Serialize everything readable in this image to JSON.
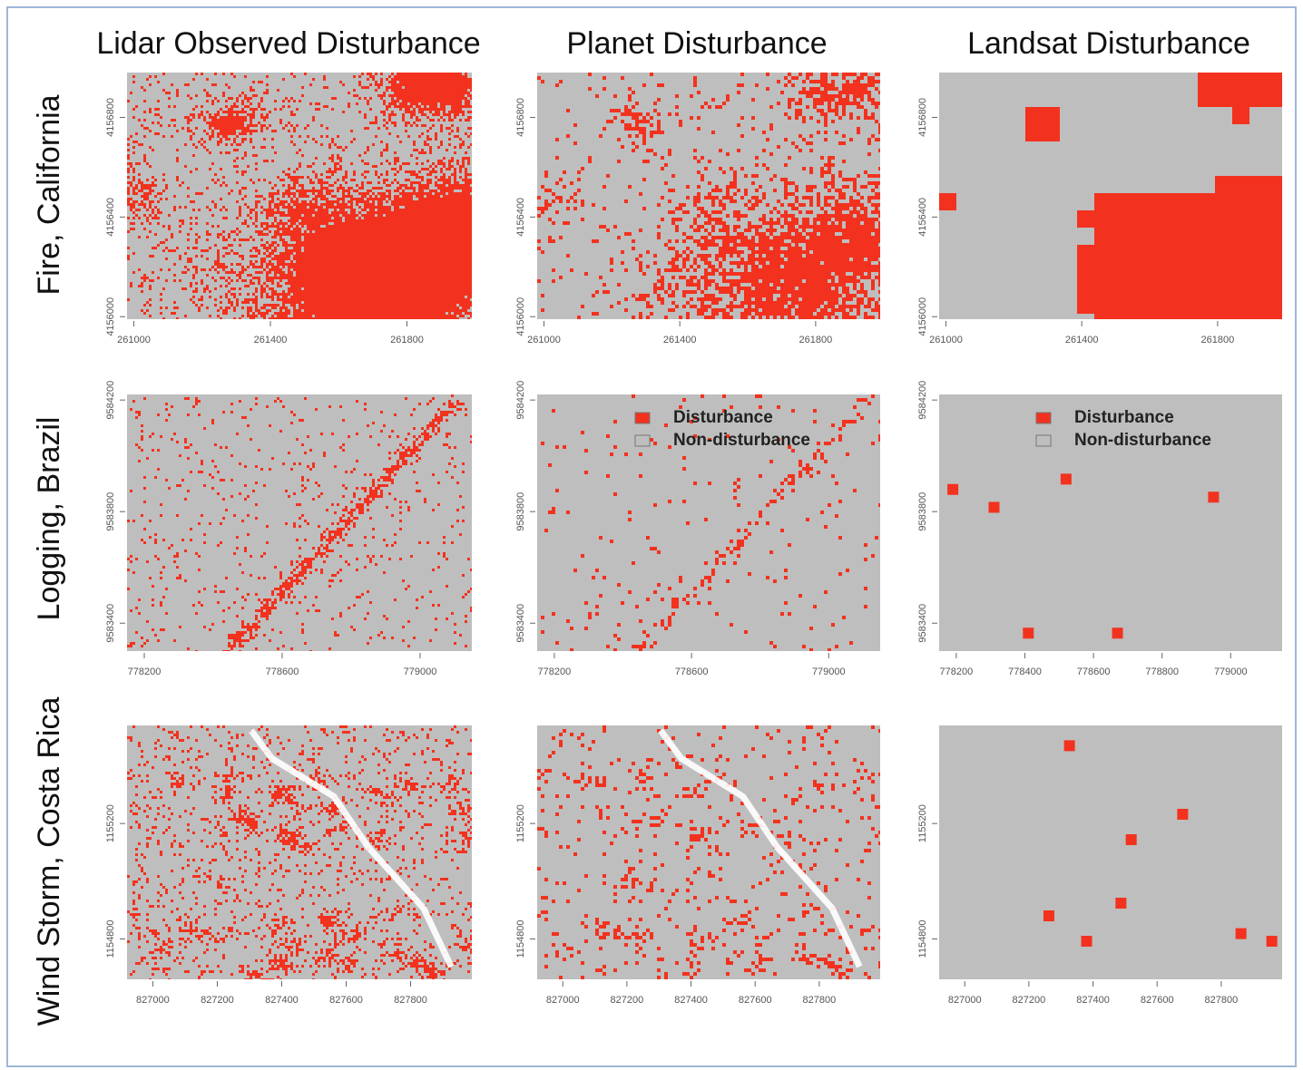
{
  "columns": [
    "Lidar Observed Disturbance",
    "Planet Disturbance",
    "Landsat Disturbance"
  ],
  "rows": [
    "Fire, California",
    "Logging, Brazil",
    "Wind Storm, Costa Rica"
  ],
  "panels": [
    [
      {
        "xlim": [
          260980,
          261990
        ],
        "ylim": [
          4155990,
          4156980
        ],
        "xticks": [
          261000,
          261400,
          261800
        ],
        "yticks": [
          4156000,
          4156400,
          4156800
        ]
      },
      {
        "xlim": [
          260980,
          261990
        ],
        "ylim": [
          4155990,
          4156980
        ],
        "xticks": [
          261000,
          261400,
          261800
        ],
        "yticks": [
          4156000,
          4156400,
          4156800
        ]
      },
      {
        "xlim": [
          260980,
          261990
        ],
        "ylim": [
          4155990,
          4156980
        ],
        "xticks": [
          261000,
          261400,
          261800
        ],
        "yticks": [
          4156000,
          4156400,
          4156800
        ]
      }
    ],
    [
      {
        "xlim": [
          778150,
          779150
        ],
        "ylim": [
          9583300,
          9584220
        ],
        "xticks": [
          778200,
          778600,
          779000
        ],
        "yticks": [
          9583400,
          9583800,
          9584200
        ]
      },
      {
        "xlim": [
          778150,
          779150
        ],
        "ylim": [
          9583300,
          9584220
        ],
        "xticks": [
          778200,
          778600,
          779000
        ],
        "yticks": [
          9583400,
          9583800,
          9584200
        ]
      },
      {
        "xlim": [
          778150,
          779150
        ],
        "ylim": [
          9583300,
          9584220
        ],
        "xticks": [
          778200,
          778400,
          778600,
          778800,
          779000
        ],
        "yticks": [
          9583400,
          9583800,
          9584200
        ]
      }
    ],
    [
      {
        "xlim": [
          826920,
          827990
        ],
        "ylim": [
          1154660,
          1155540
        ],
        "xticks": [
          827000,
          827200,
          827400,
          827600,
          827800
        ],
        "yticks": [
          1154800,
          1155200
        ]
      },
      {
        "xlim": [
          826920,
          827990
        ],
        "ylim": [
          1154660,
          1155540
        ],
        "xticks": [
          827000,
          827200,
          827400,
          827600,
          827800
        ],
        "yticks": [
          1154800,
          1155200
        ]
      },
      {
        "xlim": [
          826920,
          827990
        ],
        "ylim": [
          1154660,
          1155540
        ],
        "xticks": [
          827000,
          827200,
          827400,
          827600,
          827800
        ],
        "yticks": [
          1154800,
          1155200
        ]
      }
    ]
  ],
  "legend": {
    "items": [
      {
        "label": "Disturbance",
        "color": "#f2321e"
      },
      {
        "label": "Non-disturbance",
        "color": "#bebebe"
      }
    ]
  }
}
